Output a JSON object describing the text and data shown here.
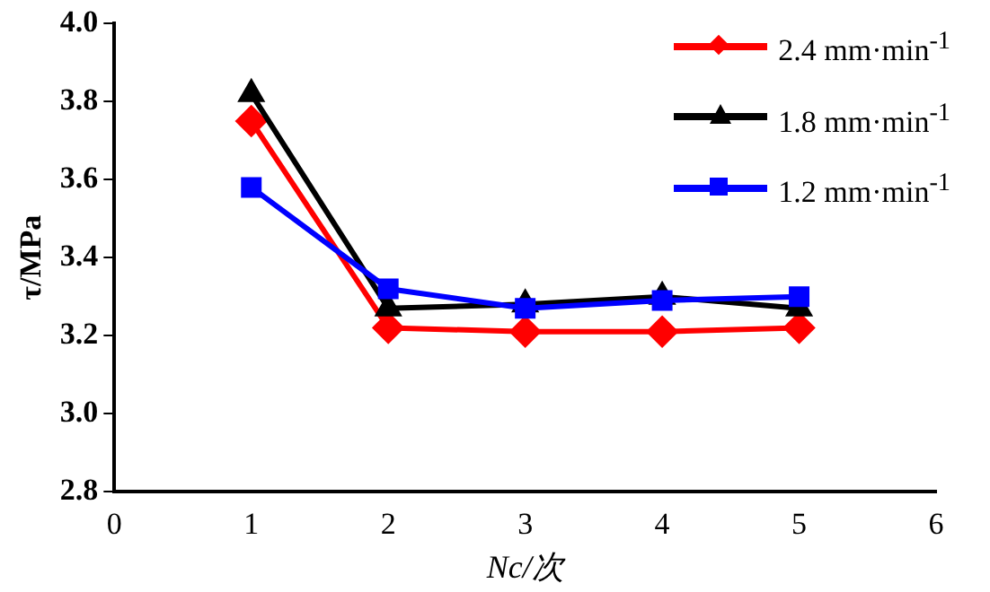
{
  "chart_data": {
    "type": "line",
    "xlabel": "Nc/次",
    "ylabel": "τ/MPa",
    "x": [
      1,
      2,
      3,
      4,
      5
    ],
    "xlim": [
      0,
      6
    ],
    "xticks": [
      0,
      1,
      2,
      3,
      4,
      5,
      6
    ],
    "ylim": [
      2.8,
      4.0
    ],
    "yticks": [
      {
        "value": 2.8,
        "label": "2.8"
      },
      {
        "value": 3.0,
        "label": "3.0"
      },
      {
        "value": 3.2,
        "label": "3.2"
      },
      {
        "value": 3.4,
        "label": "3.4"
      },
      {
        "value": 3.6,
        "label": "3.6"
      },
      {
        "value": 3.8,
        "label": "3.8"
      },
      {
        "value": 4.0,
        "label": "4.0"
      }
    ],
    "grid": false,
    "legend": "top right",
    "line_style": "solid",
    "series": [
      {
        "name": "2.4 mm·min$^{-1}$",
        "color": "#ff0000",
        "marker": "diamond",
        "values": [
          3.75,
          3.22,
          3.21,
          3.21,
          3.22
        ]
      },
      {
        "name": "1.8 mm·min$^{-1}$",
        "color": "#000000",
        "marker": "triangle",
        "values": [
          3.82,
          3.27,
          3.28,
          3.3,
          3.27
        ]
      },
      {
        "name": "1.2 mm·min$^{-1}$",
        "color": "#0000ff",
        "marker": "square",
        "values": [
          3.58,
          3.32,
          3.27,
          3.29,
          3.3
        ]
      }
    ]
  }
}
